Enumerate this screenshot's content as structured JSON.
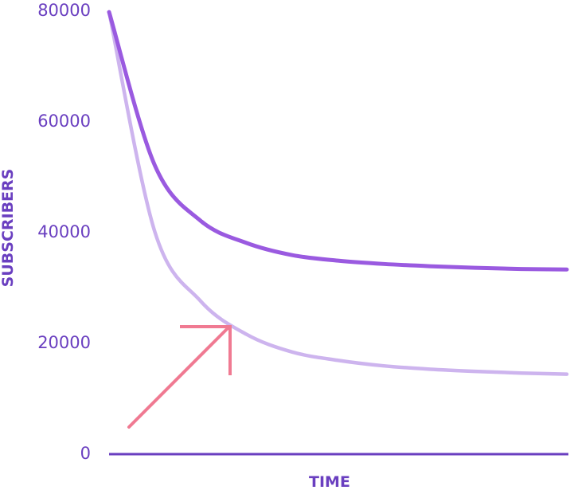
{
  "chart_data": {
    "type": "line",
    "title": "",
    "xlabel": "TIME",
    "ylabel": "SUBSCRIBERS",
    "ylim": [
      0,
      80000
    ],
    "yticks": [
      "0",
      "20000",
      "40000",
      "60000",
      "80000"
    ],
    "xticks": [],
    "grid": false,
    "legend": "none",
    "x": [
      0,
      1,
      2,
      3,
      4,
      5,
      6,
      7,
      8,
      9,
      10
    ],
    "series": [
      {
        "values": [
          79700,
          52000,
          42000,
          38000,
          35800,
          34800,
          34200,
          33800,
          33500,
          33300,
          33200
        ],
        "color": "#9a5ae0"
      },
      {
        "values": [
          79700,
          40000,
          27500,
          21500,
          18300,
          16800,
          15800,
          15200,
          14800,
          14500,
          14300
        ],
        "color": "#cdb4ee"
      }
    ],
    "annotation": {
      "shape": "arrow",
      "direction": "up-right",
      "color": "#f07a92"
    },
    "axis_color": "#6a3fc0"
  }
}
